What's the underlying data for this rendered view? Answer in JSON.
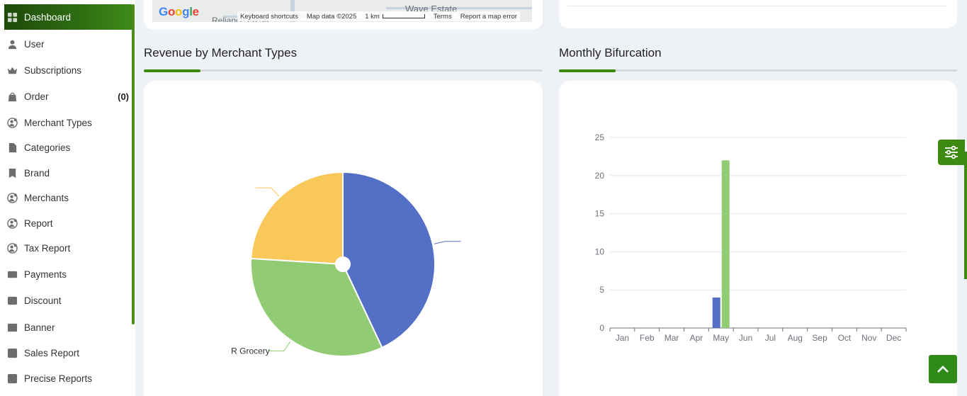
{
  "sidebar": {
    "items": [
      {
        "label": "Dashboard",
        "icon": "grid-icon",
        "active": true
      },
      {
        "label": "User",
        "icon": "user-icon"
      },
      {
        "label": "Subscriptions",
        "icon": "crown-icon"
      },
      {
        "label": "Order",
        "icon": "bag-icon",
        "count": "(0)"
      },
      {
        "label": "Merchant Types",
        "icon": "user-gear-icon"
      },
      {
        "label": "Categories",
        "icon": "document-icon"
      },
      {
        "label": "Brand",
        "icon": "bookmark-icon"
      },
      {
        "label": "Merchants",
        "icon": "user-gear-icon"
      },
      {
        "label": "Report",
        "icon": "user-gear-icon"
      },
      {
        "label": "Tax Report",
        "icon": "user-gear-icon"
      },
      {
        "label": "Payments",
        "icon": "card-icon"
      },
      {
        "label": "Discount",
        "icon": "percent-icon"
      },
      {
        "label": "Banner",
        "icon": "image-icon"
      },
      {
        "label": "Sales Report",
        "icon": "chart-icon"
      },
      {
        "label": "Precise Reports",
        "icon": "chart-icon"
      }
    ]
  },
  "map": {
    "logo": "Google",
    "place_label": "Wave Estate",
    "partial_label": "Reliance Fresh",
    "keyboard_shortcuts": "Keyboard shortcuts",
    "map_data": "Map data ©2025",
    "scale": "1 km",
    "terms": "Terms",
    "report_error": "Report a map error"
  },
  "sections": {
    "revenue_title": "Revenue by Merchant Types",
    "monthly_title": "Monthly Bifurcation"
  },
  "colors": {
    "accent_green": "#3b8a10",
    "blue": "#5470c6",
    "green": "#91cc75",
    "yellow": "#fac858"
  },
  "chart_data": [
    {
      "type": "pie",
      "title": "Revenue by Merchant Types",
      "slices": [
        {
          "name": "",
          "value": 43,
          "color": "#5470c6"
        },
        {
          "name": "R Grocery",
          "value": 33,
          "color": "#91cc75"
        },
        {
          "name": "",
          "value": 24,
          "color": "#fac858"
        }
      ]
    },
    {
      "type": "bar",
      "title": "Monthly Bifurcation",
      "categories": [
        "Jan",
        "Feb",
        "Mar",
        "Apr",
        "May",
        "Jun",
        "Jul",
        "Aug",
        "Sep",
        "Oct",
        "Nov",
        "Dec"
      ],
      "series": [
        {
          "values": [
            0,
            0,
            0,
            0,
            4,
            0,
            0,
            0,
            0,
            0,
            0,
            0
          ],
          "color": "#5470c6"
        },
        {
          "values": [
            0,
            0,
            0,
            0,
            22,
            0,
            0,
            0,
            0,
            0,
            0,
            0
          ],
          "color": "#91cc75"
        }
      ],
      "ylim": [
        0,
        25
      ],
      "yticks": [
        0,
        5,
        10,
        15,
        20,
        25
      ],
      "grid": true
    }
  ]
}
